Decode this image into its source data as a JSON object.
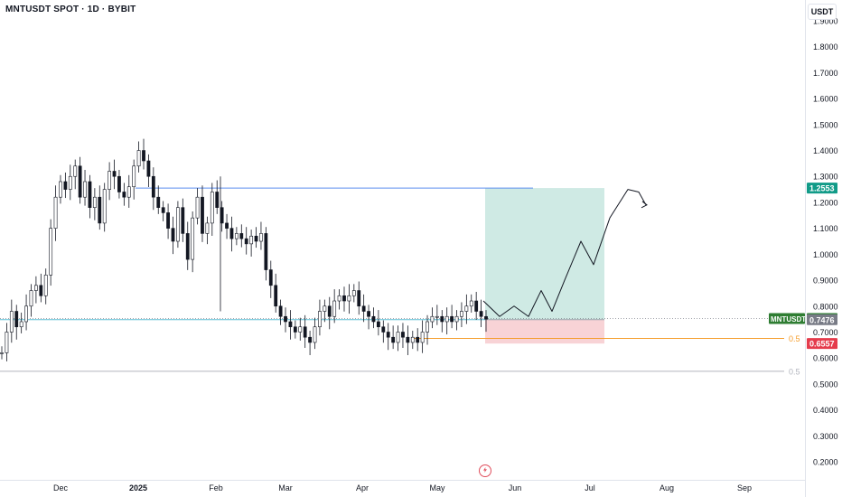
{
  "header": {
    "title": "MNTUSDT SPOT · 1D · BYBIT",
    "currency": "USDT"
  },
  "colors": {
    "up": "#131722",
    "down": "#131722",
    "tp_zone": "#cfeae4",
    "sl_zone": "#f8d3d6",
    "tp_line": "#5b8def",
    "support_line": "#5fbfd6",
    "fib_orange": "#f59d2c",
    "fib_grey": "#b2b5be",
    "price_label": "#2e7d32",
    "tp_label": "#119b88",
    "sl_label": "#e53c4c"
  },
  "chart_data": {
    "type": "candlestick",
    "symbol": "MNTUSDT",
    "x_tick_labels": [
      "Dec",
      "2025",
      "Feb",
      "Mar",
      "Apr",
      "May",
      "Jun",
      "Jul",
      "Aug",
      "Sep"
    ],
    "y_ticks": [
      0.2,
      0.3,
      0.4,
      0.5,
      0.6,
      0.7,
      0.8,
      0.9,
      1.0,
      1.1,
      1.2,
      1.3,
      1.4,
      1.5,
      1.6,
      1.7,
      1.8,
      1.9
    ],
    "y_tick_labels": [
      "0.2000",
      "0.3000",
      "0.4000",
      "0.5000",
      "0.6000",
      "0.7000",
      "0.8000",
      "0.9000",
      "1.0000",
      "1.1000",
      "1.2000",
      "1.3000",
      "1.4000",
      "1.5000",
      "1.6000",
      "1.7000",
      "1.8000",
      "1.9000"
    ],
    "ylim": [
      0.13,
      1.93
    ],
    "candle_close_path": [
      [
        0.62,
        0.7,
        0.78,
        0.72,
        0.74,
        0.8,
        0.86,
        0.88,
        0.84,
        0.92,
        1.1,
        1.22,
        1.28,
        1.25,
        1.3,
        1.34,
        1.22,
        1.28,
        1.18,
        1.22,
        1.12,
        1.25,
        1.32,
        1.3,
        1.24,
        1.22,
        1.26,
        1.34,
        1.4,
        1.36,
        1.3,
        1.22,
        1.18,
        1.16,
        1.1,
        1.05,
        1.18,
        1.08,
        0.98,
        1.14,
        1.22,
        1.08,
        1.12,
        1.24,
        1.18,
        1.12,
        1.1,
        1.06,
        1.08,
        1.06,
        1.04,
        1.07,
        1.05,
        1.08,
        0.94,
        0.88,
        0.8,
        0.76,
        0.74,
        0.72,
        0.7,
        0.72,
        0.68,
        0.66,
        0.72,
        0.78,
        0.8,
        0.76,
        0.82,
        0.84,
        0.82,
        0.84,
        0.86,
        0.8,
        0.78,
        0.76,
        0.74,
        0.72,
        0.7,
        0.68,
        0.66,
        0.7,
        0.68,
        0.66,
        0.68,
        0.66,
        0.7,
        0.74,
        0.76,
        0.76,
        0.74,
        0.76,
        0.74,
        0.76,
        0.78,
        0.8,
        0.82,
        0.78,
        0.76,
        0.75
      ]
    ],
    "position_tool": {
      "entry": 0.7476,
      "take_profit": 1.2553,
      "stop_loss": 0.6557
    },
    "levels": [
      {
        "value": 0.6757,
        "label": "0.5",
        "color": "#f59d2c"
      },
      {
        "value": 0.549,
        "label": "0.5",
        "color": "#b2b5be"
      }
    ],
    "last_price": {
      "symbol": "MNTUSDT",
      "value": "0.7522"
    },
    "price_labels": [
      {
        "value": "1.2553",
        "role": "take-profit"
      },
      {
        "value": "0.7476",
        "role": "entry"
      },
      {
        "value": "0.6557",
        "role": "stop-loss"
      }
    ]
  }
}
